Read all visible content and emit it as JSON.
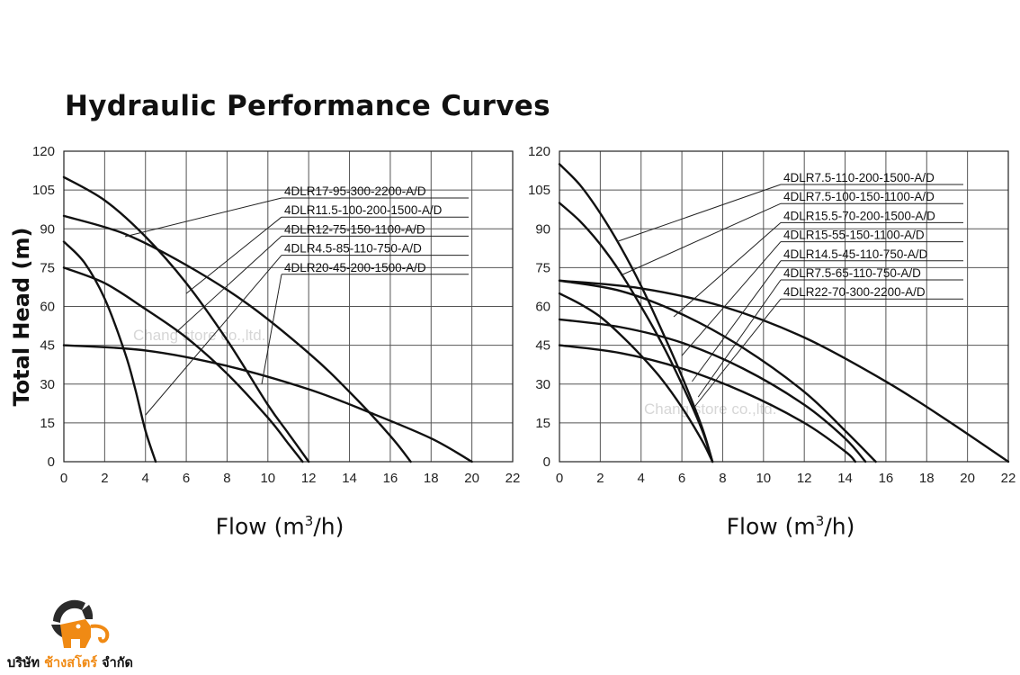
{
  "title": "Hydraulic Performance Curves",
  "ylabel": "Total Head (m)",
  "xlabel": {
    "prefix": "Flow (m",
    "sup": "3",
    "suffix": "/h)"
  },
  "watermark": "Chang store co.,ltd.",
  "company": {
    "prefix": "บริษัท ",
    "accent": "ช้างสโตร์",
    "suffix": " จำกัด"
  },
  "colors": {
    "curve": "#111111",
    "grid": "#555555",
    "accent": "#f08a14",
    "watermark": "#d6d6d6"
  },
  "chart_data": [
    {
      "type": "line",
      "title": "",
      "xlabel": "Flow (m3/h)",
      "ylabel": "Total Head (m)",
      "xlim": [
        0,
        22
      ],
      "ylim": [
        0,
        120
      ],
      "xticks": [
        0,
        2,
        4,
        6,
        8,
        10,
        12,
        14,
        16,
        18,
        20,
        22
      ],
      "yticks": [
        0,
        15,
        30,
        45,
        60,
        75,
        90,
        105,
        120
      ],
      "grid": true,
      "legend": "top-right, leader lines to curves",
      "series": [
        {
          "name": "4DLR17-95-300-2200-A/D",
          "x": [
            0,
            3,
            6,
            9,
            12,
            14,
            16,
            17
          ],
          "y": [
            95,
            88,
            76,
            61,
            42,
            27,
            10,
            0
          ],
          "leader": [
            3,
            87
          ]
        },
        {
          "name": "4DLR11.5-100-200-1500-A/D",
          "x": [
            0,
            2,
            4,
            6,
            8,
            10,
            11,
            12
          ],
          "y": [
            110,
            101,
            87,
            69,
            47,
            22,
            11,
            0
          ],
          "leader": [
            6,
            65
          ]
        },
        {
          "name": "4DLR12-75-150-1100-A/D",
          "x": [
            0,
            2,
            4,
            6,
            8,
            10,
            11,
            11.7
          ],
          "y": [
            75,
            69,
            59,
            48,
            34,
            17,
            7,
            0
          ],
          "leader": [
            5.5,
            50
          ]
        },
        {
          "name": "4DLR4.5-85-110-750-A/D",
          "x": [
            0,
            1,
            2,
            3,
            3.5,
            4,
            4.5
          ],
          "y": [
            85,
            77,
            63,
            42,
            28,
            12,
            0
          ],
          "leader": [
            4,
            18
          ]
        },
        {
          "name": "4DLR20-45-200-1500-A/D",
          "x": [
            0,
            4,
            8,
            12,
            15,
            18,
            20
          ],
          "y": [
            45,
            43,
            37,
            28,
            19,
            9,
            0
          ],
          "leader": [
            9.7,
            30
          ]
        }
      ]
    },
    {
      "type": "line",
      "title": "",
      "xlabel": "Flow (m3/h)",
      "ylabel": "Total Head (m)",
      "xlim": [
        0,
        22
      ],
      "ylim": [
        0,
        120
      ],
      "xticks": [
        0,
        2,
        4,
        6,
        8,
        10,
        12,
        14,
        16,
        18,
        20,
        22
      ],
      "yticks": [
        0,
        15,
        30,
        45,
        60,
        75,
        90,
        105,
        120
      ],
      "grid": true,
      "legend": "top-right, leader lines to curves",
      "series": [
        {
          "name": "4DLR7.5-110-200-1500-A/D",
          "x": [
            0,
            1,
            2,
            3,
            4,
            5,
            6,
            7,
            7.5
          ],
          "y": [
            115,
            107,
            96,
            83,
            68,
            51,
            33,
            13,
            0
          ],
          "leader": [
            2.8,
            85
          ]
        },
        {
          "name": "4DLR7.5-100-150-1100-A/D",
          "x": [
            0,
            1,
            2,
            3,
            4,
            5,
            6,
            7,
            7.5
          ],
          "y": [
            100,
            93,
            84,
            73,
            60,
            46,
            30,
            12,
            0
          ],
          "leader": [
            3,
            72
          ]
        },
        {
          "name": "4DLR15.5-70-200-1500-A/D",
          "x": [
            0,
            3,
            6,
            9,
            12,
            14,
            15.5
          ],
          "y": [
            70,
            66,
            57,
            44,
            27,
            12,
            0
          ],
          "leader": [
            5.6,
            56
          ]
        },
        {
          "name": "4DLR15-55-150-1100-A/D",
          "x": [
            0,
            3,
            6,
            9,
            12,
            14,
            15
          ],
          "y": [
            55,
            52,
            46,
            36,
            22,
            9,
            0
          ],
          "leader": [
            6,
            41
          ]
        },
        {
          "name": "4DLR14.5-45-110-750-A/D",
          "x": [
            0,
            3,
            6,
            9,
            12,
            14,
            14.5
          ],
          "y": [
            45,
            42,
            36,
            27,
            15,
            4,
            0
          ],
          "leader": [
            6.5,
            31
          ]
        },
        {
          "name": "4DLR7.5-65-110-750-A/D",
          "x": [
            0,
            1,
            2,
            3,
            4,
            5,
            6,
            7,
            7.5
          ],
          "y": [
            65,
            61,
            56,
            49,
            41,
            32,
            21,
            8,
            0
          ],
          "leader": [
            6.8,
            25
          ]
        },
        {
          "name": "4DLR22-70-300-2200-A/D",
          "x": [
            0,
            4,
            8,
            12,
            16,
            19,
            22
          ],
          "y": [
            70,
            67,
            60,
            48,
            31,
            16,
            0
          ],
          "leader": [
            6.6,
            21
          ]
        }
      ]
    }
  ]
}
